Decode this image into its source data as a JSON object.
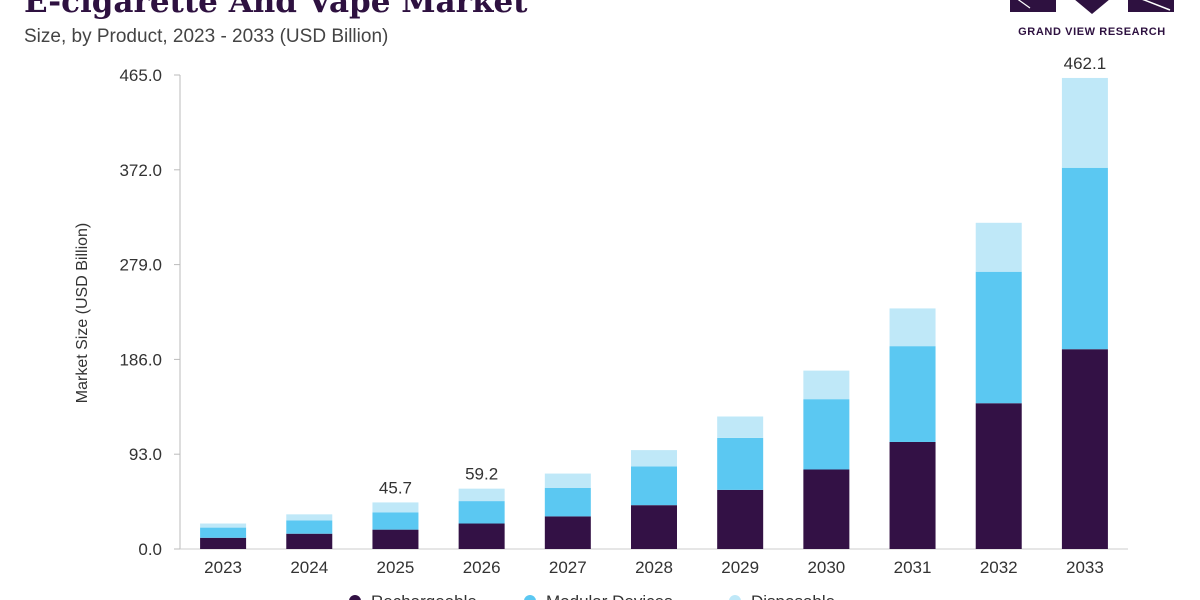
{
  "header": {
    "title": "E-cigarette And Vape Market",
    "subtitle": "Size, by Product, 2023 - 2033 (USD Billion)"
  },
  "logo": {
    "text": "GRAND VIEW RESEARCH",
    "icon": "grand-view-research-logo",
    "color": "#2e1140"
  },
  "chart_data": {
    "type": "bar",
    "stacked": true,
    "title": "E-cigarette And Vape Market",
    "subtitle": "Size, by Product, 2023 - 2033 (USD Billion)",
    "xlabel": "",
    "ylabel": "Market Size (USD Billion)",
    "ylim": [
      0,
      465
    ],
    "yticks": [
      "0.0",
      "93.0",
      "186.0",
      "279.0",
      "372.0",
      "465.0"
    ],
    "grid": false,
    "legend_position": "bottom",
    "categories": [
      "2023",
      "2024",
      "2025",
      "2026",
      "2027",
      "2028",
      "2029",
      "2030",
      "2031",
      "2032",
      "2033"
    ],
    "series": [
      {
        "name": "Rechargeable",
        "color": "#331145",
        "values": [
          11,
          15,
          19,
          25,
          32,
          43,
          58,
          78,
          105,
          143,
          196
        ]
      },
      {
        "name": "Modular Devices",
        "color": "#5bc8f2",
        "values": [
          10,
          13,
          17,
          22,
          28,
          38,
          51,
          69,
          94,
          129,
          178
        ]
      },
      {
        "name": "Disposable",
        "color": "#bfe8f8",
        "values": [
          4,
          6,
          9.7,
          12.2,
          14,
          16,
          21,
          28,
          37,
          48,
          88.1
        ]
      }
    ],
    "data_labels": [
      {
        "category": "2025",
        "text": "45.7"
      },
      {
        "category": "2026",
        "text": "59.2"
      },
      {
        "category": "2033",
        "text": "462.1"
      }
    ]
  }
}
